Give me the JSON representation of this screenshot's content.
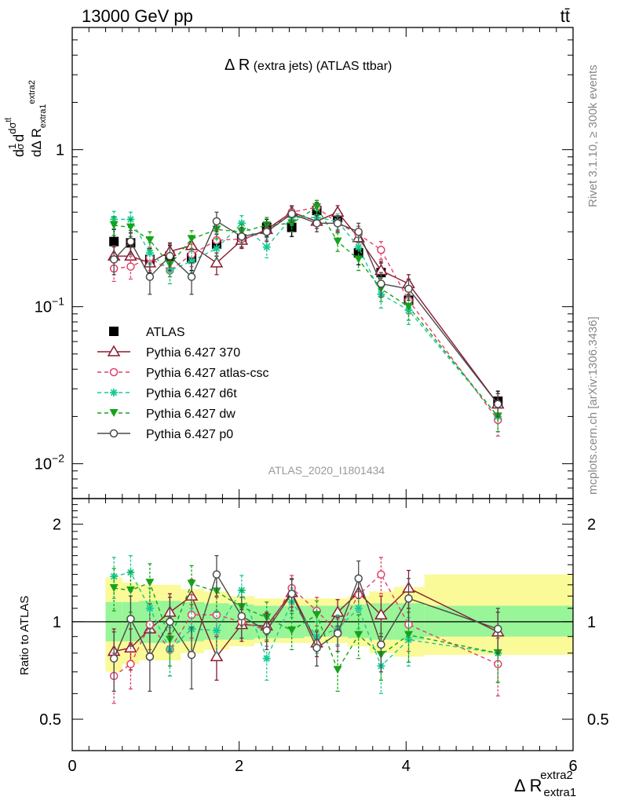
{
  "header": {
    "left_title": "13000 GeV pp",
    "right_title": "tt̄"
  },
  "side_labels": {
    "rivet": "Rivet 3.1.10, ≥ 300k events",
    "mcplots": "mcplots.cern.ch [arXiv:1306.3436]"
  },
  "analysis_id": "ATLAS_2020_I1801434",
  "colors": {
    "data": "#000000",
    "p370": "#8b1a2f",
    "atlascsc": "#e0406a",
    "d6t": "#19c996",
    "dw": "#16a31a",
    "p0": "#4a4a4a",
    "band_inner": "#98f598",
    "band_outer": "#fafa98"
  },
  "chart_data": [
    {
      "type": "line",
      "title": "Δ R (extra jets) (ATLAS ttbar)",
      "ylabel": "1/σ dσ^tt̄/dΔ R^extra2_extra1",
      "yscale": "log",
      "xlim": [
        0,
        6
      ],
      "ylim": [
        0.006,
        6
      ],
      "ytick_labels": [
        "10^-2",
        "10^-1",
        "1"
      ],
      "x": [
        0.5,
        0.7,
        0.93,
        1.17,
        1.43,
        1.73,
        2.03,
        2.33,
        2.63,
        2.93,
        3.18,
        3.43,
        3.7,
        4.03,
        5.1
      ],
      "legend_position": "lower-left",
      "series": [
        {
          "name": "ATLAS",
          "key": "data",
          "marker": "square",
          "values": [
            0.26,
            0.255,
            0.2,
            0.21,
            0.205,
            0.25,
            0.27,
            0.32,
            0.32,
            0.41,
            0.37,
            0.22,
            0.165,
            0.11,
            0.025
          ],
          "errors": [
            0.05,
            0.04,
            0.035,
            0.035,
            0.035,
            0.04,
            0.035,
            0.04,
            0.04,
            0.05,
            0.045,
            0.035,
            0.025,
            0.02,
            0.004
          ]
        },
        {
          "name": "Pythia 6.427 370",
          "key": "p370",
          "marker": "triangle-open",
          "values": [
            0.21,
            0.21,
            0.19,
            0.225,
            0.245,
            0.19,
            0.265,
            0.31,
            0.4,
            0.35,
            0.4,
            0.275,
            0.17,
            0.14,
            0.024
          ],
          "errors": [
            0.035,
            0.03,
            0.03,
            0.03,
            0.03,
            0.03,
            0.03,
            0.035,
            0.04,
            0.035,
            0.04,
            0.035,
            0.025,
            0.02,
            0.004
          ]
        },
        {
          "name": "Pythia 6.427 atlas-csc",
          "key": "atlascsc",
          "marker": "circle-open",
          "values": [
            0.175,
            0.18,
            0.205,
            0.17,
            0.215,
            0.265,
            0.27,
            0.3,
            0.4,
            0.43,
            0.34,
            0.29,
            0.23,
            0.11,
            0.019
          ],
          "errors": [
            0.03,
            0.03,
            0.035,
            0.03,
            0.035,
            0.035,
            0.03,
            0.035,
            0.04,
            0.045,
            0.035,
            0.035,
            0.03,
            0.02,
            0.004
          ]
        },
        {
          "name": "Pythia 6.427 d6t",
          "key": "d6t",
          "marker": "star",
          "values": [
            0.36,
            0.36,
            0.22,
            0.17,
            0.195,
            0.235,
            0.34,
            0.24,
            0.37,
            0.37,
            0.35,
            0.24,
            0.12,
            0.095,
            0.02
          ],
          "errors": [
            0.045,
            0.04,
            0.035,
            0.03,
            0.03,
            0.035,
            0.04,
            0.035,
            0.04,
            0.04,
            0.04,
            0.035,
            0.022,
            0.018,
            0.004
          ]
        },
        {
          "name": "Pythia 6.427 dw",
          "key": "dw",
          "marker": "triangle-down-filled",
          "values": [
            0.33,
            0.32,
            0.265,
            0.185,
            0.27,
            0.31,
            0.3,
            0.33,
            0.34,
            0.43,
            0.26,
            0.2,
            0.13,
            0.1,
            0.02
          ],
          "errors": [
            0.045,
            0.04,
            0.035,
            0.03,
            0.035,
            0.04,
            0.035,
            0.04,
            0.04,
            0.045,
            0.035,
            0.03,
            0.022,
            0.018,
            0.004
          ]
        },
        {
          "name": "Pythia 6.427 p0",
          "key": "p0",
          "marker": "circle-open",
          "values": [
            0.2,
            0.26,
            0.155,
            0.21,
            0.155,
            0.35,
            0.28,
            0.3,
            0.39,
            0.34,
            0.34,
            0.3,
            0.14,
            0.13,
            0.024
          ],
          "errors": [
            0.04,
            0.045,
            0.035,
            0.04,
            0.035,
            0.05,
            0.04,
            0.04,
            0.045,
            0.04,
            0.04,
            0.04,
            0.025,
            0.02,
            0.004
          ]
        }
      ]
    },
    {
      "type": "line",
      "ylabel": "Ratio to ATLAS",
      "xlabel": "Δ R^extra2_extra1",
      "xlim": [
        0,
        6
      ],
      "ylim": [
        0.4,
        2.4
      ],
      "yscale": "log",
      "x_tick_labels": [
        "0",
        "2",
        "4",
        "6"
      ],
      "y_tick_labels": [
        "0.5",
        "1",
        "2"
      ],
      "bands": {
        "edges": [
          0.4,
          0.6,
          0.8,
          1.05,
          1.3,
          1.58,
          1.88,
          2.18,
          2.48,
          2.78,
          3.05,
          3.3,
          3.56,
          3.85,
          4.22,
          6.0
        ],
        "inner_lo": [
          0.87,
          0.87,
          0.86,
          0.86,
          0.87,
          0.88,
          0.88,
          0.89,
          0.89,
          0.9,
          0.9,
          0.89,
          0.88,
          0.88,
          0.9
        ],
        "inner_hi": [
          1.15,
          1.15,
          1.16,
          1.16,
          1.15,
          1.14,
          1.13,
          1.12,
          1.12,
          1.12,
          1.12,
          1.13,
          1.14,
          1.14,
          1.12
        ],
        "outer_lo": [
          0.7,
          0.74,
          0.76,
          0.76,
          0.8,
          0.82,
          0.84,
          0.86,
          0.86,
          0.86,
          0.86,
          0.84,
          0.8,
          0.78,
          0.79
        ],
        "outer_hi": [
          1.37,
          1.32,
          1.3,
          1.3,
          1.26,
          1.24,
          1.2,
          1.18,
          1.18,
          1.18,
          1.18,
          1.2,
          1.24,
          1.28,
          1.4
        ]
      },
      "x": [
        0.5,
        0.7,
        0.93,
        1.17,
        1.43,
        1.73,
        2.03,
        2.33,
        2.63,
        2.93,
        3.18,
        3.43,
        3.7,
        4.03,
        5.1
      ],
      "series": [
        {
          "name": "Pythia 6.427 370",
          "key": "p370",
          "marker": "triangle-open",
          "values": [
            0.81,
            0.83,
            0.95,
            1.07,
            1.2,
            0.78,
            0.98,
            0.97,
            1.23,
            0.86,
            1.07,
            1.23,
            1.05,
            1.27,
            0.93
          ],
          "errors": [
            0.14,
            0.12,
            0.15,
            0.15,
            0.15,
            0.12,
            0.11,
            0.1,
            0.12,
            0.08,
            0.1,
            0.14,
            0.15,
            0.17,
            0.14
          ]
        },
        {
          "name": "Pythia 6.427 atlas-csc",
          "key": "atlascsc",
          "marker": "circle-open",
          "values": [
            0.68,
            0.74,
            0.98,
            0.82,
            1.05,
            1.05,
            1.0,
            0.94,
            1.27,
            1.08,
            0.93,
            1.21,
            1.4,
            0.98,
            0.74
          ],
          "errors": [
            0.12,
            0.12,
            0.16,
            0.14,
            0.16,
            0.14,
            0.11,
            0.1,
            0.12,
            0.11,
            0.09,
            0.14,
            0.18,
            0.17,
            0.15
          ]
        },
        {
          "name": "Pythia 6.427 d6t",
          "key": "d6t",
          "marker": "star",
          "values": [
            1.38,
            1.42,
            1.1,
            0.82,
            0.95,
            0.94,
            1.25,
            0.77,
            1.15,
            0.9,
            0.95,
            1.1,
            0.73,
            0.88,
            0.8
          ],
          "errors": [
            0.2,
            0.18,
            0.17,
            0.14,
            0.15,
            0.14,
            0.14,
            0.11,
            0.12,
            0.1,
            0.1,
            0.15,
            0.13,
            0.15,
            0.15
          ]
        },
        {
          "name": "Pythia 6.427 dw",
          "key": "dw",
          "marker": "triangle-down-filled",
          "values": [
            1.27,
            1.25,
            1.32,
            0.88,
            1.31,
            1.24,
            1.11,
            1.03,
            0.94,
            1.05,
            0.71,
            0.91,
            0.79,
            0.91,
            0.8
          ],
          "errors": [
            0.19,
            0.18,
            0.19,
            0.15,
            0.18,
            0.17,
            0.14,
            0.12,
            0.12,
            0.11,
            0.1,
            0.14,
            0.13,
            0.16,
            0.15
          ]
        },
        {
          "name": "Pythia 6.427 p0",
          "key": "p0",
          "marker": "circle-open",
          "values": [
            0.77,
            1.02,
            0.78,
            1.0,
            0.79,
            1.4,
            1.04,
            0.94,
            1.22,
            0.83,
            0.92,
            1.36,
            0.85,
            1.18,
            0.95
          ],
          "errors": [
            0.16,
            0.18,
            0.17,
            0.19,
            0.17,
            0.2,
            0.15,
            0.12,
            0.14,
            0.1,
            0.11,
            0.18,
            0.15,
            0.18,
            0.15
          ]
        }
      ]
    }
  ]
}
